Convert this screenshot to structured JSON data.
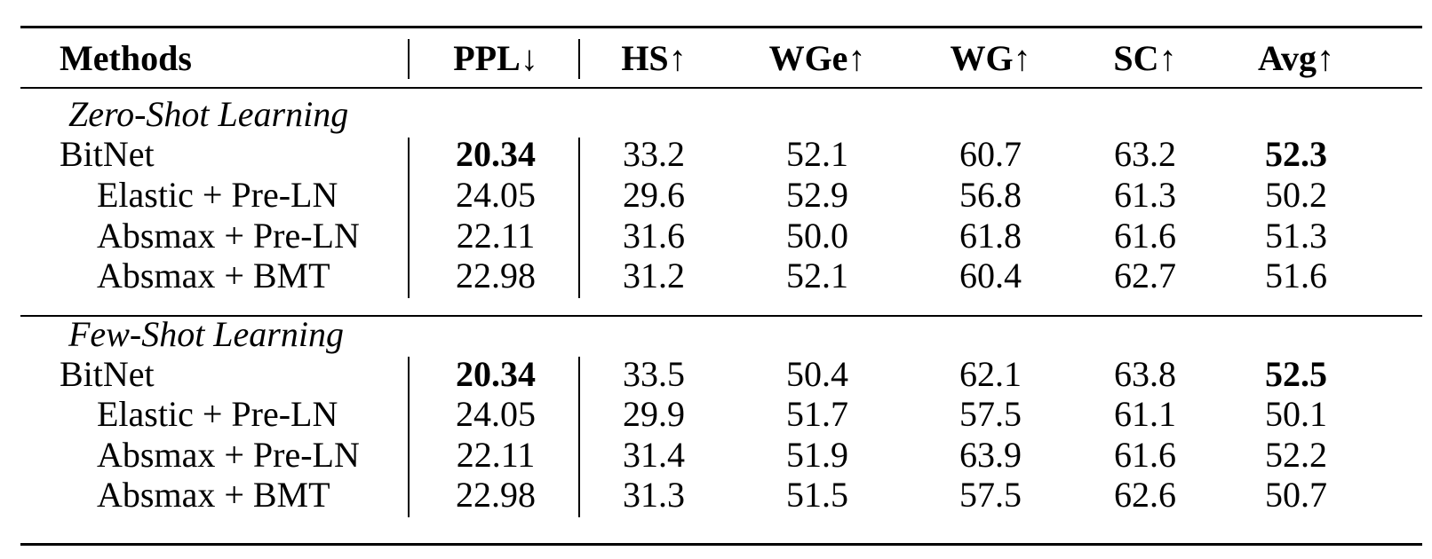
{
  "table": {
    "headers": [
      "Methods",
      "PPL↓",
      "HS↑",
      "WGe↑",
      "WG↑",
      "SC↑",
      "Avg↑"
    ],
    "sections": [
      {
        "title": "Zero-Shot Learning",
        "rows": [
          {
            "method": "BitNet",
            "ppl": "20.34",
            "hs": "33.2",
            "wge": "52.1",
            "wg": "60.7",
            "sc": "63.2",
            "avg": "52.3"
          },
          {
            "method": "Elastic + Pre-LN",
            "ppl": "24.05",
            "hs": "29.6",
            "wge": "52.9",
            "wg": "56.8",
            "sc": "61.3",
            "avg": "50.2"
          },
          {
            "method": "Absmax + Pre-LN",
            "ppl": "22.11",
            "hs": "31.6",
            "wge": "50.0",
            "wg": "61.8",
            "sc": "61.6",
            "avg": "51.3"
          },
          {
            "method": "Absmax + BMT",
            "ppl": "22.98",
            "hs": "31.2",
            "wge": "52.1",
            "wg": "60.4",
            "sc": "62.7",
            "avg": "51.6"
          }
        ]
      },
      {
        "title": "Few-Shot Learning",
        "rows": [
          {
            "method": "BitNet",
            "ppl": "20.34",
            "hs": "33.5",
            "wge": "50.4",
            "wg": "62.1",
            "sc": "63.8",
            "avg": "52.5"
          },
          {
            "method": "Elastic + Pre-LN",
            "ppl": "24.05",
            "hs": "29.9",
            "wge": "51.7",
            "wg": "57.5",
            "sc": "61.1",
            "avg": "50.1"
          },
          {
            "method": "Absmax + Pre-LN",
            "ppl": "22.11",
            "hs": "31.4",
            "wge": "51.9",
            "wg": "63.9",
            "sc": "61.6",
            "avg": "52.2"
          },
          {
            "method": "Absmax + BMT",
            "ppl": "22.98",
            "hs": "31.3",
            "wge": "51.5",
            "wg": "57.5",
            "sc": "62.6",
            "avg": "50.7"
          }
        ]
      }
    ]
  }
}
